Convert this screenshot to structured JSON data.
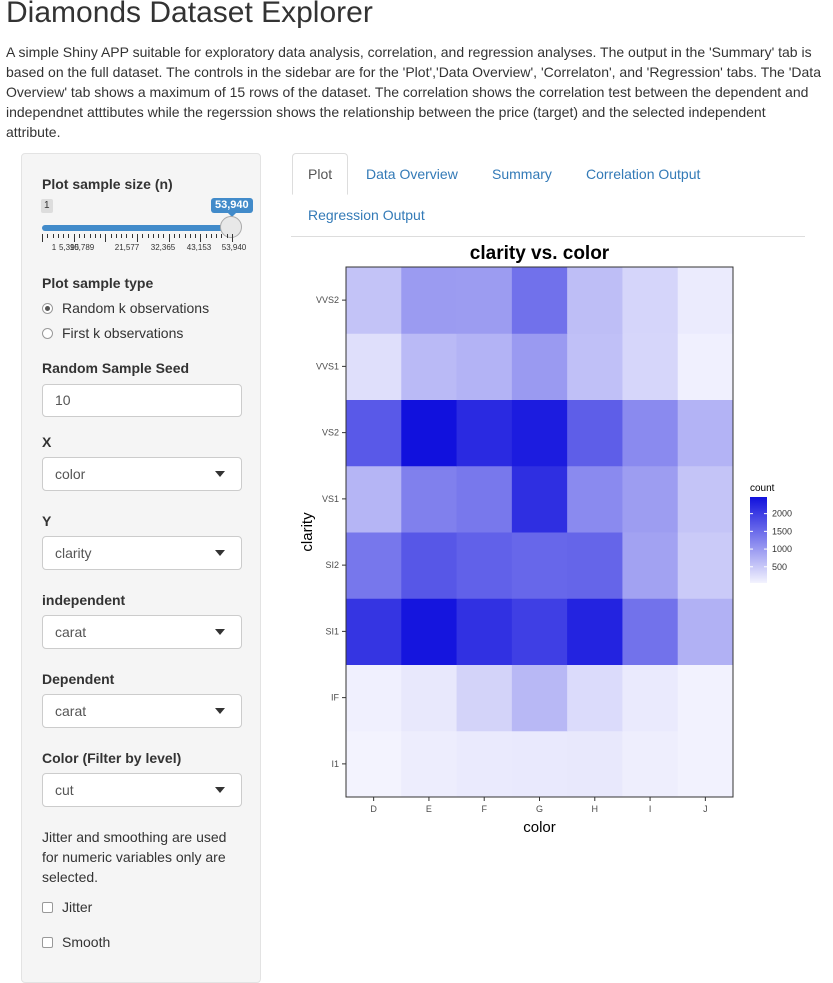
{
  "app": {
    "title": "Diamonds Dataset Explorer",
    "description": "A simple Shiny APP suitable for exploratory data analysis, correlation, and regression analyses. The output in the 'Summary' tab is based on the full dataset. The controls in the sidebar are for the 'Plot','Data Overview', 'Correlaton', and 'Regression' tabs. The 'Data Overview' tab shows a maximum of 15 rows of the dataset. The correlation shows the correlation test between the dependent and independnet atttibutes while the regerssion shows the relationship between the price (target) and the selected independent attribute."
  },
  "sidebar": {
    "sample_size": {
      "label": "Plot sample size (n)",
      "min": "1",
      "value": "53,940",
      "fraction": 1.0,
      "tick_labels": [
        "1",
        "5,395",
        "10,789",
        "21,577",
        "32,365",
        "43,153",
        "53,940"
      ]
    },
    "sample_type": {
      "label": "Plot sample type",
      "options": [
        "Random k observations",
        "First k observations"
      ],
      "selected": "Random k observations"
    },
    "seed": {
      "label": "Random Sample Seed",
      "value": "10"
    },
    "x": {
      "label": "X",
      "value": "color"
    },
    "y": {
      "label": "Y",
      "value": "clarity"
    },
    "independent": {
      "label": "independent",
      "value": "carat"
    },
    "dependent": {
      "label": "Dependent",
      "value": "carat"
    },
    "color_filter": {
      "label": "Color (Filter by level)",
      "value": "cut"
    },
    "note": "Jitter and smoothing are used for numeric variables only are selected.",
    "jitter": {
      "label": "Jitter",
      "checked": false
    },
    "smooth": {
      "label": "Smooth",
      "checked": false
    }
  },
  "tabs": [
    {
      "label": "Plot",
      "active": true
    },
    {
      "label": "Data Overview",
      "active": false
    },
    {
      "label": "Summary",
      "active": false
    },
    {
      "label": "Correlation Output",
      "active": false
    },
    {
      "label": "Regression Output",
      "active": false
    }
  ],
  "chart_data": {
    "type": "heatmap",
    "title": "clarity vs. color",
    "xlabel": "color",
    "ylabel": "clarity",
    "x_categories": [
      "D",
      "E",
      "F",
      "G",
      "H",
      "I",
      "J"
    ],
    "y_categories": [
      "I1",
      "IF",
      "SI1",
      "SI2",
      "VS1",
      "VS2",
      "VVS1",
      "VVS2"
    ],
    "values": [
      [
        42,
        102,
        143,
        150,
        162,
        92,
        50
      ],
      [
        73,
        158,
        385,
        681,
        299,
        143,
        51
      ],
      [
        2083,
        2426,
        2131,
        1976,
        2275,
        1424,
        750
      ],
      [
        1370,
        1713,
        1609,
        1548,
        1563,
        912,
        479
      ],
      [
        705,
        1281,
        1364,
        2148,
        1169,
        962,
        542
      ],
      [
        1697,
        2470,
        2201,
        2347,
        1643,
        1169,
        731
      ],
      [
        252,
        656,
        734,
        999,
        585,
        355,
        74
      ],
      [
        553,
        991,
        975,
        1443,
        608,
        365,
        131
      ]
    ],
    "legend": {
      "title": "count",
      "ticks": [
        500,
        1000,
        1500,
        2000
      ],
      "min": 42,
      "max": 2470,
      "low_color": "#f3f3fe",
      "high_color": "#1111dd"
    },
    "colors": {
      "panel_bg": "#ebebeb",
      "text": "#333333"
    }
  }
}
